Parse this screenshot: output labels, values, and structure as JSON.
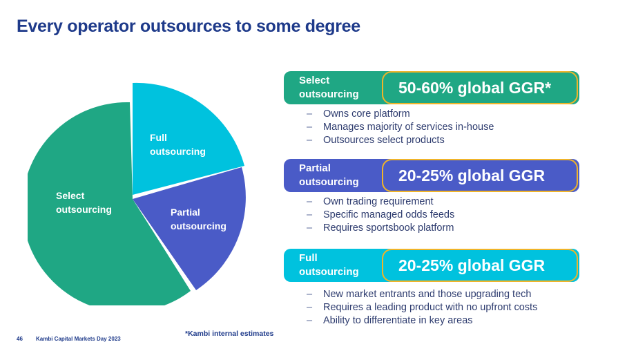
{
  "title": "Every operator outsources to some degree",
  "colors": {
    "select": "#1fa784",
    "partial": "#4a5bc7",
    "full": "#00c2de",
    "border": "#f0b429",
    "text": "#1e3a8a"
  },
  "pie": {
    "slices": [
      {
        "name": "Full outsourcing",
        "line1": "Full",
        "line2": "outsourcing"
      },
      {
        "name": "Partial outsourcing",
        "line1": "Partial",
        "line2": "outsourcing"
      },
      {
        "name": "Select outsourcing",
        "line1": "Select",
        "line2": "outsourcing"
      }
    ]
  },
  "segments": [
    {
      "label_line1": "Select",
      "label_line2": "outsourcing",
      "value": "50-60% global GGR*",
      "bullets": [
        "Owns core platform",
        "Manages majority of services in-house",
        "Outsources select products"
      ]
    },
    {
      "label_line1": "Partial",
      "label_line2": "outsourcing",
      "value": "20-25% global GGR",
      "bullets": [
        "Own trading requirement",
        "Specific managed odds feeds",
        "Requires sportsbook platform"
      ]
    },
    {
      "label_line1": "Full",
      "label_line2": "outsourcing",
      "value": "20-25% global GGR",
      "bullets": [
        "New market entrants and those upgrading tech",
        "Requires a leading product with no upfront costs",
        "Ability to differentiate in key areas"
      ]
    }
  ],
  "bullet_dash": "–",
  "footnote": "*Kambi internal estimates",
  "page_number": "46",
  "footer": "Kambi Capital Markets Day 2023"
}
